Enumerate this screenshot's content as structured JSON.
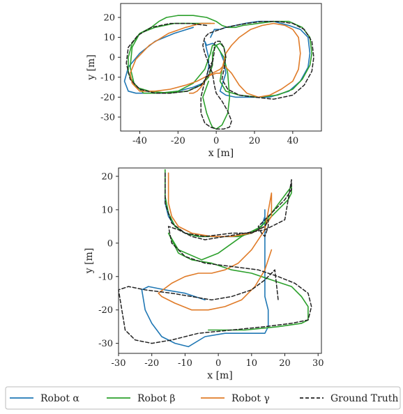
{
  "chart_data": [
    {
      "type": "line",
      "xlabel": "x [m]",
      "ylabel": "y [m]",
      "xlim": [
        -50,
        55
      ],
      "ylim": [
        -37,
        27
      ],
      "xticks": [
        -40,
        -20,
        0,
        20,
        40
      ],
      "yticks": [
        -30,
        -20,
        -10,
        0,
        10,
        20
      ],
      "grid": false,
      "series": [
        {
          "name": "Robot α",
          "color": "#1f77b4",
          "x": [
            -12,
            -22,
            -32,
            -40,
            -46,
            -48,
            -46,
            -42,
            -35,
            -28,
            -20,
            -12,
            -7,
            -5,
            -4,
            -4,
            -5,
            -6,
            -5,
            -2,
            0,
            2,
            4,
            5,
            3,
            2,
            5,
            10,
            18,
            28,
            38,
            44,
            48,
            49,
            48,
            44,
            38,
            30,
            22,
            15,
            10,
            5,
            2,
            -1,
            -3
          ],
          "y": [
            15,
            12,
            8,
            2,
            -5,
            -12,
            -17,
            -18,
            -18,
            -18,
            -17,
            -15,
            -13,
            -10,
            -5,
            0,
            4,
            8,
            6,
            7,
            6,
            3,
            -2,
            -8,
            -14,
            -17,
            -19,
            -20,
            -20,
            -20,
            -17,
            -12,
            -5,
            2,
            10,
            14,
            16,
            18,
            18,
            17,
            16,
            15,
            14,
            14,
            10
          ]
        },
        {
          "name": "Robot β",
          "color": "#2ca02c",
          "x": [
            -3,
            -12,
            -22,
            -32,
            -40,
            -44,
            -46,
            -46,
            -42,
            -35,
            -25,
            -15,
            -8,
            -4,
            -2,
            -2,
            0,
            2,
            4,
            5,
            3,
            2,
            5,
            12,
            22,
            32,
            40,
            45,
            49,
            50,
            49,
            45,
            38,
            30,
            22,
            14,
            10,
            6,
            3,
            0,
            -5,
            -12,
            -20,
            -26,
            -30,
            -34,
            -40,
            -44,
            -45,
            -43,
            -38,
            -30,
            -20,
            -12,
            -6,
            -3,
            -2,
            0,
            4,
            6,
            7,
            6,
            3,
            0,
            -2,
            -3,
            -5,
            -7,
            -4
          ],
          "y": [
            17,
            17,
            17,
            15,
            12,
            7,
            0,
            -8,
            -15,
            -17,
            -18,
            -17,
            -14,
            -10,
            -4,
            2,
            6,
            7,
            5,
            0,
            -6,
            -12,
            -17,
            -19,
            -20,
            -19,
            -16,
            -11,
            -4,
            2,
            10,
            15,
            18,
            18,
            17,
            16,
            15,
            15,
            16,
            18,
            20,
            21,
            21,
            20,
            18,
            15,
            12,
            5,
            -5,
            -13,
            -18,
            -18,
            -17,
            -13,
            -6,
            2,
            6,
            6,
            0,
            -8,
            -20,
            -28,
            -34,
            -36,
            -35,
            -33,
            -28,
            -20,
            -12
          ]
        },
        {
          "name": "Robot γ",
          "color": "#e07b28",
          "x": [
            -1,
            -8,
            -16,
            -25,
            -35,
            -42,
            -45,
            -44,
            -40,
            -32,
            -24,
            -16,
            -10,
            -6,
            -2,
            2,
            4,
            8,
            12,
            16,
            22,
            28,
            34,
            40,
            43,
            44,
            43,
            40,
            36,
            30,
            24,
            18,
            12,
            8,
            5,
            4,
            3,
            2,
            0,
            -3,
            -5,
            -6,
            -8,
            -10,
            -12,
            -14
          ],
          "y": [
            17,
            17,
            15,
            12,
            6,
            -1,
            -8,
            -13,
            -17,
            -17,
            -16,
            -14,
            -12,
            -10,
            -8,
            -6,
            -4,
            -8,
            -14,
            -18,
            -20,
            -19,
            -16,
            -12,
            -6,
            2,
            10,
            14,
            16,
            17,
            16,
            14,
            10,
            6,
            2,
            -2,
            -6,
            -8,
            -8,
            -9,
            -10,
            -12,
            -15,
            -17,
            -18,
            -18
          ]
        },
        {
          "name": "Ground Truth",
          "color": "#222222",
          "x": [
            -5,
            -14,
            -24,
            -34,
            -41,
            -46,
            -47,
            -45,
            -40,
            -32,
            -24,
            -15,
            -8,
            -4,
            -2,
            -1,
            -1,
            0,
            2,
            4,
            5,
            4,
            3,
            6,
            12,
            20,
            30,
            40,
            46,
            50,
            51,
            50,
            46,
            40,
            32,
            24,
            16,
            10,
            5,
            2,
            -1,
            -4,
            -6,
            -7,
            -6,
            -4,
            -2,
            -1,
            0,
            3,
            6,
            8,
            7,
            4,
            0,
            -3,
            -6,
            -8,
            -8,
            -6,
            -4,
            -2
          ],
          "y": [
            16,
            17,
            17,
            15,
            11,
            5,
            -3,
            -11,
            -16,
            -18,
            -18,
            -17,
            -14,
            -9,
            -3,
            3,
            7,
            8,
            8,
            5,
            0,
            -6,
            -11,
            -16,
            -19,
            -20,
            -21,
            -19,
            -14,
            -7,
            0,
            8,
            14,
            17,
            18,
            18,
            17,
            16,
            15,
            14,
            13,
            12,
            10,
            6,
            2,
            -3,
            -8,
            -14,
            -18,
            -22,
            -27,
            -32,
            -35,
            -36,
            -36,
            -35,
            -33,
            -28,
            -20,
            -12,
            -6,
            -2
          ]
        }
      ]
    },
    {
      "type": "line",
      "xlabel": "x [m]",
      "ylabel": "y [m]",
      "xlim": [
        -30,
        31
      ],
      "ylim": [
        -33,
        22.5
      ],
      "xticks": [
        -30,
        -20,
        -10,
        0,
        10,
        20,
        30
      ],
      "yticks": [
        -30,
        -20,
        -10,
        0,
        10,
        20
      ],
      "grid": false,
      "series": [
        {
          "name": "Robot α",
          "color": "#1f77b4",
          "x": [
            -16,
            -16,
            -15,
            -13,
            -10,
            -6,
            -2,
            2,
            6,
            10,
            13,
            14,
            14,
            14,
            14,
            14,
            14,
            15,
            15,
            14,
            12,
            8,
            2,
            -4,
            -9,
            -13,
            -17,
            -20,
            -22,
            -23,
            -21,
            -16,
            -10,
            -4
          ],
          "y": [
            21,
            12,
            8,
            5,
            3,
            2,
            2,
            2,
            2,
            3,
            5,
            8,
            10,
            5,
            -2,
            -10,
            -16,
            -20,
            -25,
            -27,
            -27,
            -27,
            -27,
            -28,
            -31,
            -30,
            -28,
            -24,
            -20,
            -14,
            -13,
            -14,
            -15,
            -17
          ]
        },
        {
          "name": "Robot β",
          "color": "#2ca02c",
          "x": [
            -16,
            -16,
            -15,
            -13,
            -10,
            -6,
            -2,
            2,
            6,
            10,
            14,
            17,
            19,
            21,
            22,
            22,
            13,
            7,
            0,
            -5,
            -12,
            -15,
            -12,
            -8,
            -2,
            4,
            10,
            16,
            22,
            25,
            27,
            27,
            25,
            18,
            8,
            -3
          ],
          "y": [
            22,
            14,
            9,
            5,
            3,
            2,
            2,
            2,
            2,
            3,
            6,
            9,
            11,
            13,
            15,
            17,
            5,
            2,
            -3,
            -5,
            -2,
            3,
            -3,
            -5,
            -6,
            -8,
            -9,
            -11,
            -13,
            -16,
            -19,
            -23,
            -24,
            -25,
            -26,
            -26
          ]
        },
        {
          "name": "Robot γ",
          "color": "#e07b28",
          "x": [
            -15,
            -15,
            -14,
            -12,
            -8,
            -2,
            4,
            10,
            14,
            16,
            16,
            14,
            10,
            6,
            2,
            -2,
            -6,
            -10,
            -14,
            -18,
            -17,
            -13,
            -8,
            -3,
            2,
            7,
            11,
            14,
            16
          ],
          "y": [
            21,
            12,
            8,
            5,
            3,
            2,
            2,
            3,
            5,
            8,
            15,
            4,
            -2,
            -6,
            -8,
            -9,
            -9,
            -10,
            -12,
            -15,
            -16,
            -18,
            -20,
            -20,
            -19,
            -17,
            -13,
            -8,
            -2
          ]
        },
        {
          "name": "Ground Truth",
          "color": "#222222",
          "x": [
            -16,
            -16,
            -14,
            -10,
            -4,
            4,
            10,
            14,
            15,
            15,
            14,
            13,
            12,
            16,
            20,
            22,
            22,
            20,
            14,
            8,
            2,
            -4,
            -8,
            -12,
            -15,
            -14,
            -10,
            -4,
            4,
            12,
            18,
            23,
            27,
            28,
            27,
            22,
            14,
            4,
            -6,
            -14,
            -20,
            -25,
            -28,
            -30,
            -27,
            -22,
            -14,
            -8,
            -2,
            4,
            10,
            14,
            17,
            18
          ],
          "y": [
            21,
            12,
            6,
            3,
            2,
            3,
            3,
            5,
            7,
            5,
            2,
            3,
            5,
            9,
            13,
            16,
            19,
            7,
            4,
            3,
            2,
            1,
            2,
            4,
            5,
            0,
            -4,
            -6,
            -7,
            -8,
            -10,
            -12,
            -15,
            -19,
            -23,
            -24,
            -25,
            -26,
            -27,
            -29,
            -30,
            -29,
            -26,
            -14,
            -13,
            -14,
            -15,
            -16,
            -17,
            -16,
            -14,
            -11,
            -8,
            -17
          ]
        }
      ]
    }
  ],
  "legend": {
    "items": [
      {
        "label": "Robot α",
        "color": "#1f77b4",
        "style": "solid"
      },
      {
        "label": "Robot β",
        "color": "#2ca02c",
        "style": "solid"
      },
      {
        "label": "Robot γ",
        "color": "#e07b28",
        "style": "solid"
      },
      {
        "label": "Ground Truth",
        "color": "#222222",
        "style": "dashed"
      }
    ]
  }
}
